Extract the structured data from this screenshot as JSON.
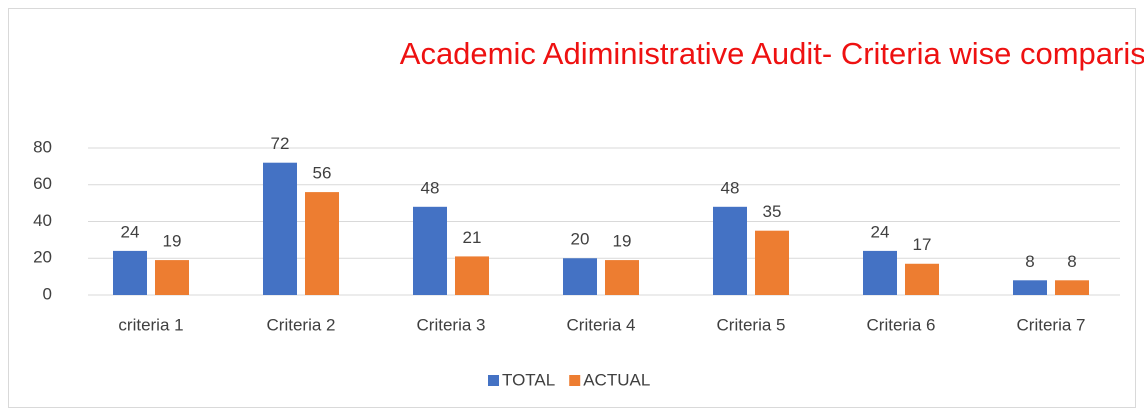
{
  "chart_data": {
    "type": "bar",
    "title": "Academic Adiministrative Audit- Criteria wise comparison",
    "categories": [
      "criteria 1",
      "Criteria 2",
      "Criteria 3",
      "Criteria 4",
      "Criteria 5",
      "Criteria 6",
      "Criteria 7"
    ],
    "series": [
      {
        "name": "TOTAL",
        "color": "#4472c4",
        "values": [
          24,
          72,
          48,
          20,
          48,
          24,
          8
        ]
      },
      {
        "name": "ACTUAL",
        "color": "#ed7d31",
        "values": [
          19,
          56,
          21,
          19,
          35,
          17,
          8
        ]
      }
    ],
    "ylim": [
      0,
      80
    ],
    "yticks": [
      0,
      20,
      40,
      60,
      80
    ],
    "grid": true,
    "legend": "bottom"
  }
}
